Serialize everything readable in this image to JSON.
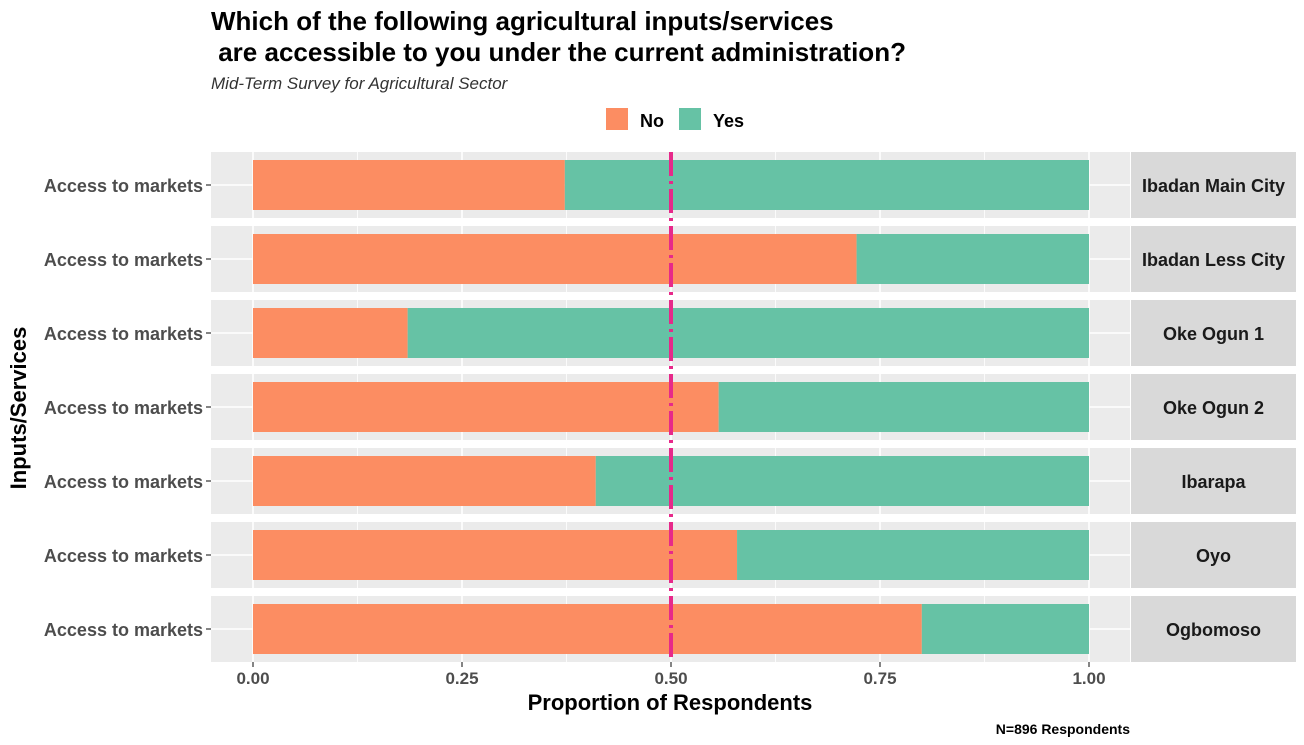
{
  "chart_data": {
    "type": "bar",
    "orientation": "horizontal",
    "stacked": "proportion",
    "title_lines": [
      "Which of the following agricultural inputs/services",
      " are accessible to you under the current administration?"
    ],
    "subtitle": "Mid-Term Survey for Agricultural Sector",
    "xlabel": "Proportion of Respondents",
    "ylabel": "Inputs/Services",
    "caption": "N=896 Respondents",
    "xlim": [
      0,
      1
    ],
    "xticks": [
      0,
      0.25,
      0.5,
      0.75,
      1
    ],
    "xtick_labels": [
      "0.00",
      "0.25",
      "0.50",
      "0.75",
      "1.00"
    ],
    "reference_line": 0.5,
    "legend": {
      "placement": "top",
      "items": [
        "No",
        "Yes"
      ]
    },
    "colors": {
      "No": "#fc8d62",
      "Yes": "#66c2a5",
      "reference_line": "#e7298a",
      "panel": "#ebebeb",
      "strip": "#d9d9d9"
    },
    "category": "Access to markets",
    "facets": [
      {
        "name": "Ibadan Main City",
        "no": 0.373,
        "yes": 0.627
      },
      {
        "name": "Ibadan Less City",
        "no": 0.722,
        "yes": 0.278
      },
      {
        "name": "Oke Ogun 1",
        "no": 0.185,
        "yes": 0.815
      },
      {
        "name": "Oke Ogun 2",
        "no": 0.557,
        "yes": 0.443
      },
      {
        "name": "Ibarapa",
        "no": 0.41,
        "yes": 0.59
      },
      {
        "name": "Oyo",
        "no": 0.579,
        "yes": 0.421
      },
      {
        "name": "Ogbomoso",
        "no": 0.8,
        "yes": 0.2
      }
    ]
  }
}
